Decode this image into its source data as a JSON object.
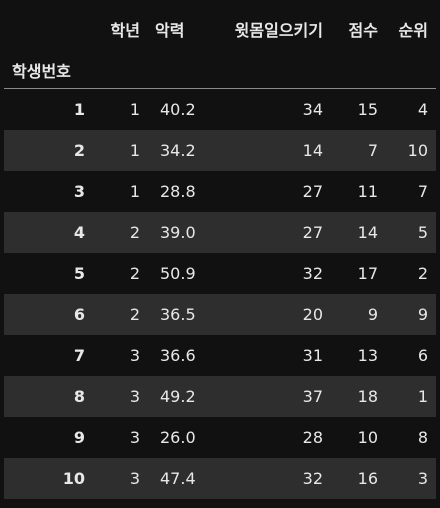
{
  "table": {
    "index_name": "학생번호",
    "columns": [
      "학년",
      "악력",
      "윗몸일으키기",
      "점수",
      "순위"
    ],
    "rows": [
      {
        "index": "1",
        "cells": [
          "1",
          "40.2",
          "34",
          "15",
          "4"
        ]
      },
      {
        "index": "2",
        "cells": [
          "1",
          "34.2",
          "14",
          "7",
          "10"
        ]
      },
      {
        "index": "3",
        "cells": [
          "1",
          "28.8",
          "27",
          "11",
          "7"
        ]
      },
      {
        "index": "4",
        "cells": [
          "2",
          "39.0",
          "27",
          "14",
          "5"
        ]
      },
      {
        "index": "5",
        "cells": [
          "2",
          "50.9",
          "32",
          "17",
          "2"
        ]
      },
      {
        "index": "6",
        "cells": [
          "2",
          "36.5",
          "20",
          "9",
          "9"
        ]
      },
      {
        "index": "7",
        "cells": [
          "3",
          "36.6",
          "31",
          "13",
          "6"
        ]
      },
      {
        "index": "8",
        "cells": [
          "3",
          "49.2",
          "37",
          "18",
          "1"
        ]
      },
      {
        "index": "9",
        "cells": [
          "3",
          "26.0",
          "28",
          "10",
          "8"
        ]
      },
      {
        "index": "10",
        "cells": [
          "3",
          "47.4",
          "32",
          "16",
          "3"
        ]
      }
    ]
  },
  "colors": {
    "background": "#111111",
    "row_stripe": "#2e2e2e",
    "text": "#e8e8e8",
    "header_rule": "#8a8a8a"
  }
}
